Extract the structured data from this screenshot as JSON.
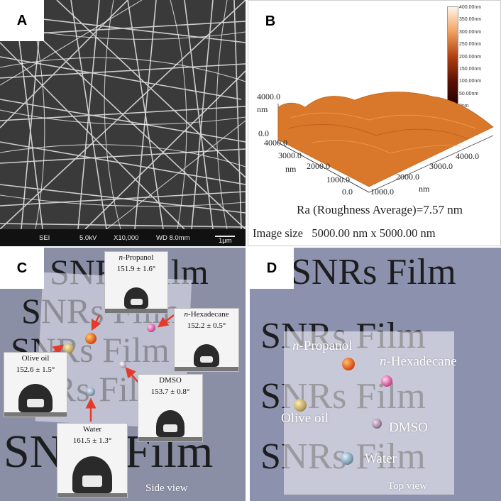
{
  "panels": {
    "a": {
      "letter": "A",
      "sem": {
        "mode": "SEI",
        "voltage": "5.0kV",
        "magnification": "X10,000",
        "wd": "WD 8.0mm",
        "scale": "1μm"
      }
    },
    "b": {
      "letter": "B",
      "colorbar_ticks": [
        "400.00nm",
        "350.00nm",
        "300.00nm",
        "250.00nm",
        "200.00nm",
        "150.00nm",
        "100.00nm",
        "50.00nm",
        "0nm"
      ],
      "z_axis": {
        "top": "4000.0",
        "unit": "nm",
        "bottom": "0.0"
      },
      "y_axis": {
        "ticks": [
          "4000.0",
          "3000.0",
          "2000.0",
          "1000.0",
          "0.0"
        ],
        "unit": "nm"
      },
      "x_axis": {
        "ticks": [
          "1000.0",
          "2000.0",
          "3000.0",
          "4000.0"
        ],
        "unit": "nm"
      },
      "roughness": "Ra (Roughness Average)=7.57 nm",
      "image_size": "Image size   5000.00 nm x 5000.00 nm"
    },
    "c": {
      "letter": "C",
      "bg_text": "SNRs Film",
      "insets": [
        {
          "name": "n-Propanol",
          "name_prefix": "n",
          "name_rest": "-Propanol",
          "angle": "151.9 ± 1.6°"
        },
        {
          "name": "n-Hexadecane",
          "name_prefix": "n",
          "name_rest": "-Hexadecane",
          "angle": "152.2 ± 0.5°"
        },
        {
          "name": "Olive oil",
          "angle": "152.6 ± 1.5°"
        },
        {
          "name": "DMSO",
          "angle": "153.7 ± 0.8°"
        },
        {
          "name": "Water",
          "angle": "161.5 ± 1.3°"
        }
      ],
      "view_label": "Side view"
    },
    "d": {
      "letter": "D",
      "bg_text": "SNRs Film",
      "labels": {
        "propanol_prefix": "n",
        "propanol_rest": "-Propanol",
        "hexadecane_prefix": "n",
        "hexadecane_rest": "-Hexadecane",
        "olive": "Olive oil",
        "dmso": "DMSO",
        "water": "Water"
      },
      "view_label": "Top view"
    }
  },
  "colors": {
    "afm_surface": "#d9782a",
    "propanol": "#e0541a",
    "hexadecane": "#d4559a",
    "olive": "#b8a060",
    "dmso": "#9a7c9a",
    "water": "#7f9ab0",
    "arrow": "#e53a2a"
  }
}
